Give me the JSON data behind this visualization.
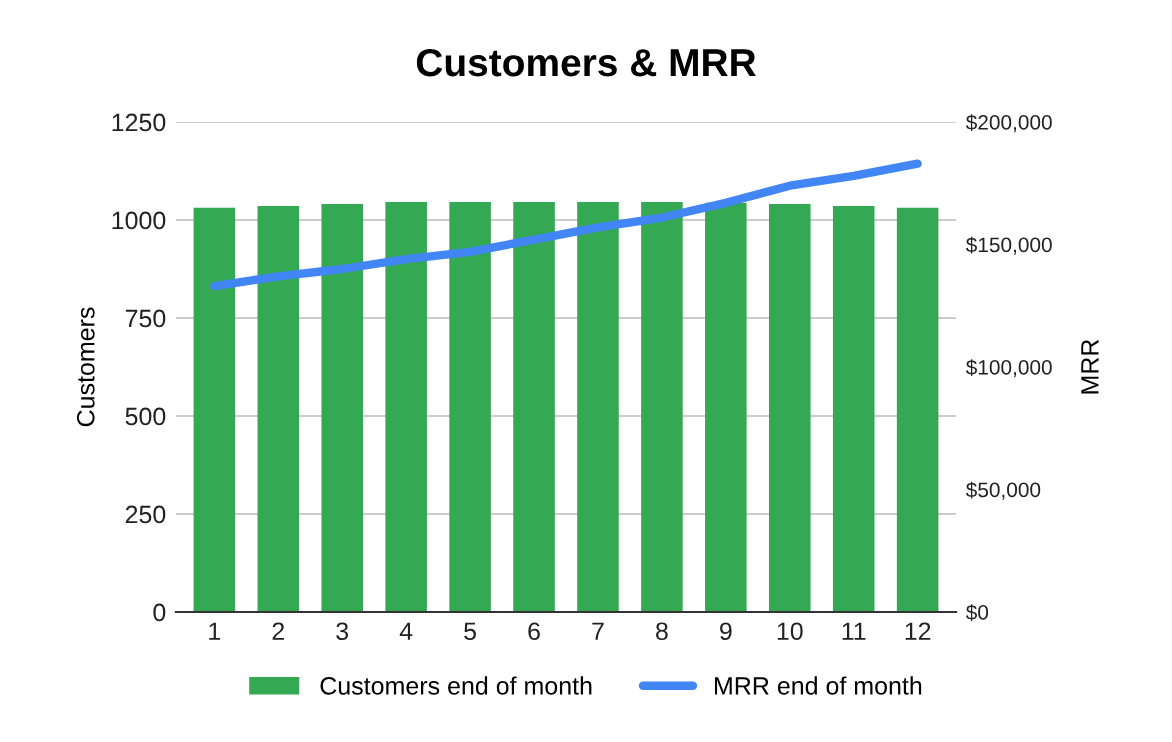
{
  "chart_data": {
    "type": "bar",
    "title": "Customers & MRR",
    "categories": [
      "1",
      "2",
      "3",
      "4",
      "5",
      "6",
      "7",
      "8",
      "9",
      "10",
      "11",
      "12"
    ],
    "series": [
      {
        "name": "Customers end of month",
        "color": "#34a853",
        "values": [
          1031,
          1036,
          1041,
          1046,
          1046,
          1046,
          1046,
          1046,
          1044,
          1041,
          1036,
          1031
        ]
      },
      {
        "name": "MRR end of month",
        "type": "line",
        "axis": "y2",
        "color": "#4285f4",
        "values": [
          133000,
          137000,
          140000,
          144000,
          147000,
          152000,
          157000,
          161000,
          167000,
          174000,
          178000,
          183000
        ]
      }
    ],
    "ylabel": "Customers",
    "y2label": "MRR",
    "ylim": [
      0,
      1250
    ],
    "yticks": [
      0,
      250,
      500,
      750,
      1000,
      1250
    ],
    "y2lim": [
      0,
      200000
    ],
    "y2ticks": [
      {
        "value": 0,
        "label": "$0"
      },
      {
        "value": 50000,
        "label": "$50,000"
      },
      {
        "value": 100000,
        "label": "$100,000"
      },
      {
        "value": 150000,
        "label": "$150,000"
      },
      {
        "value": 200000,
        "label": "$200,000"
      }
    ],
    "grid": "y",
    "legend": "bottom"
  }
}
